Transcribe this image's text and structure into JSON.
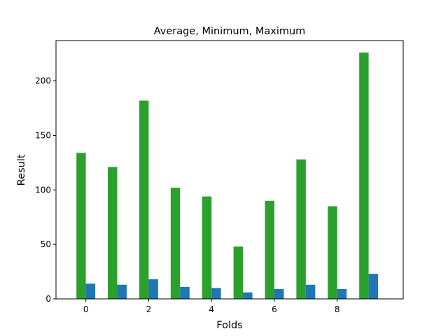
{
  "chart_data": {
    "type": "bar",
    "title": "Average, Minimum, Maximum",
    "xlabel": "Folds",
    "ylabel": "Result",
    "x": [
      0,
      1,
      2,
      3,
      4,
      5,
      6,
      7,
      8,
      9
    ],
    "xticks": [
      0,
      2,
      4,
      6,
      8
    ],
    "yticks": [
      0,
      50,
      100,
      150,
      200
    ],
    "xlim": [
      -0.95,
      10.1
    ],
    "ylim": [
      0,
      237
    ],
    "grid": false,
    "series": [
      {
        "color": "#2ca02c",
        "values": [
          134,
          121,
          182,
          102,
          94,
          48,
          90,
          128,
          85,
          226
        ]
      },
      {
        "color": "#1f77b4",
        "values": [
          14,
          13,
          18,
          11,
          10,
          6,
          9,
          13,
          9,
          23
        ]
      }
    ]
  }
}
